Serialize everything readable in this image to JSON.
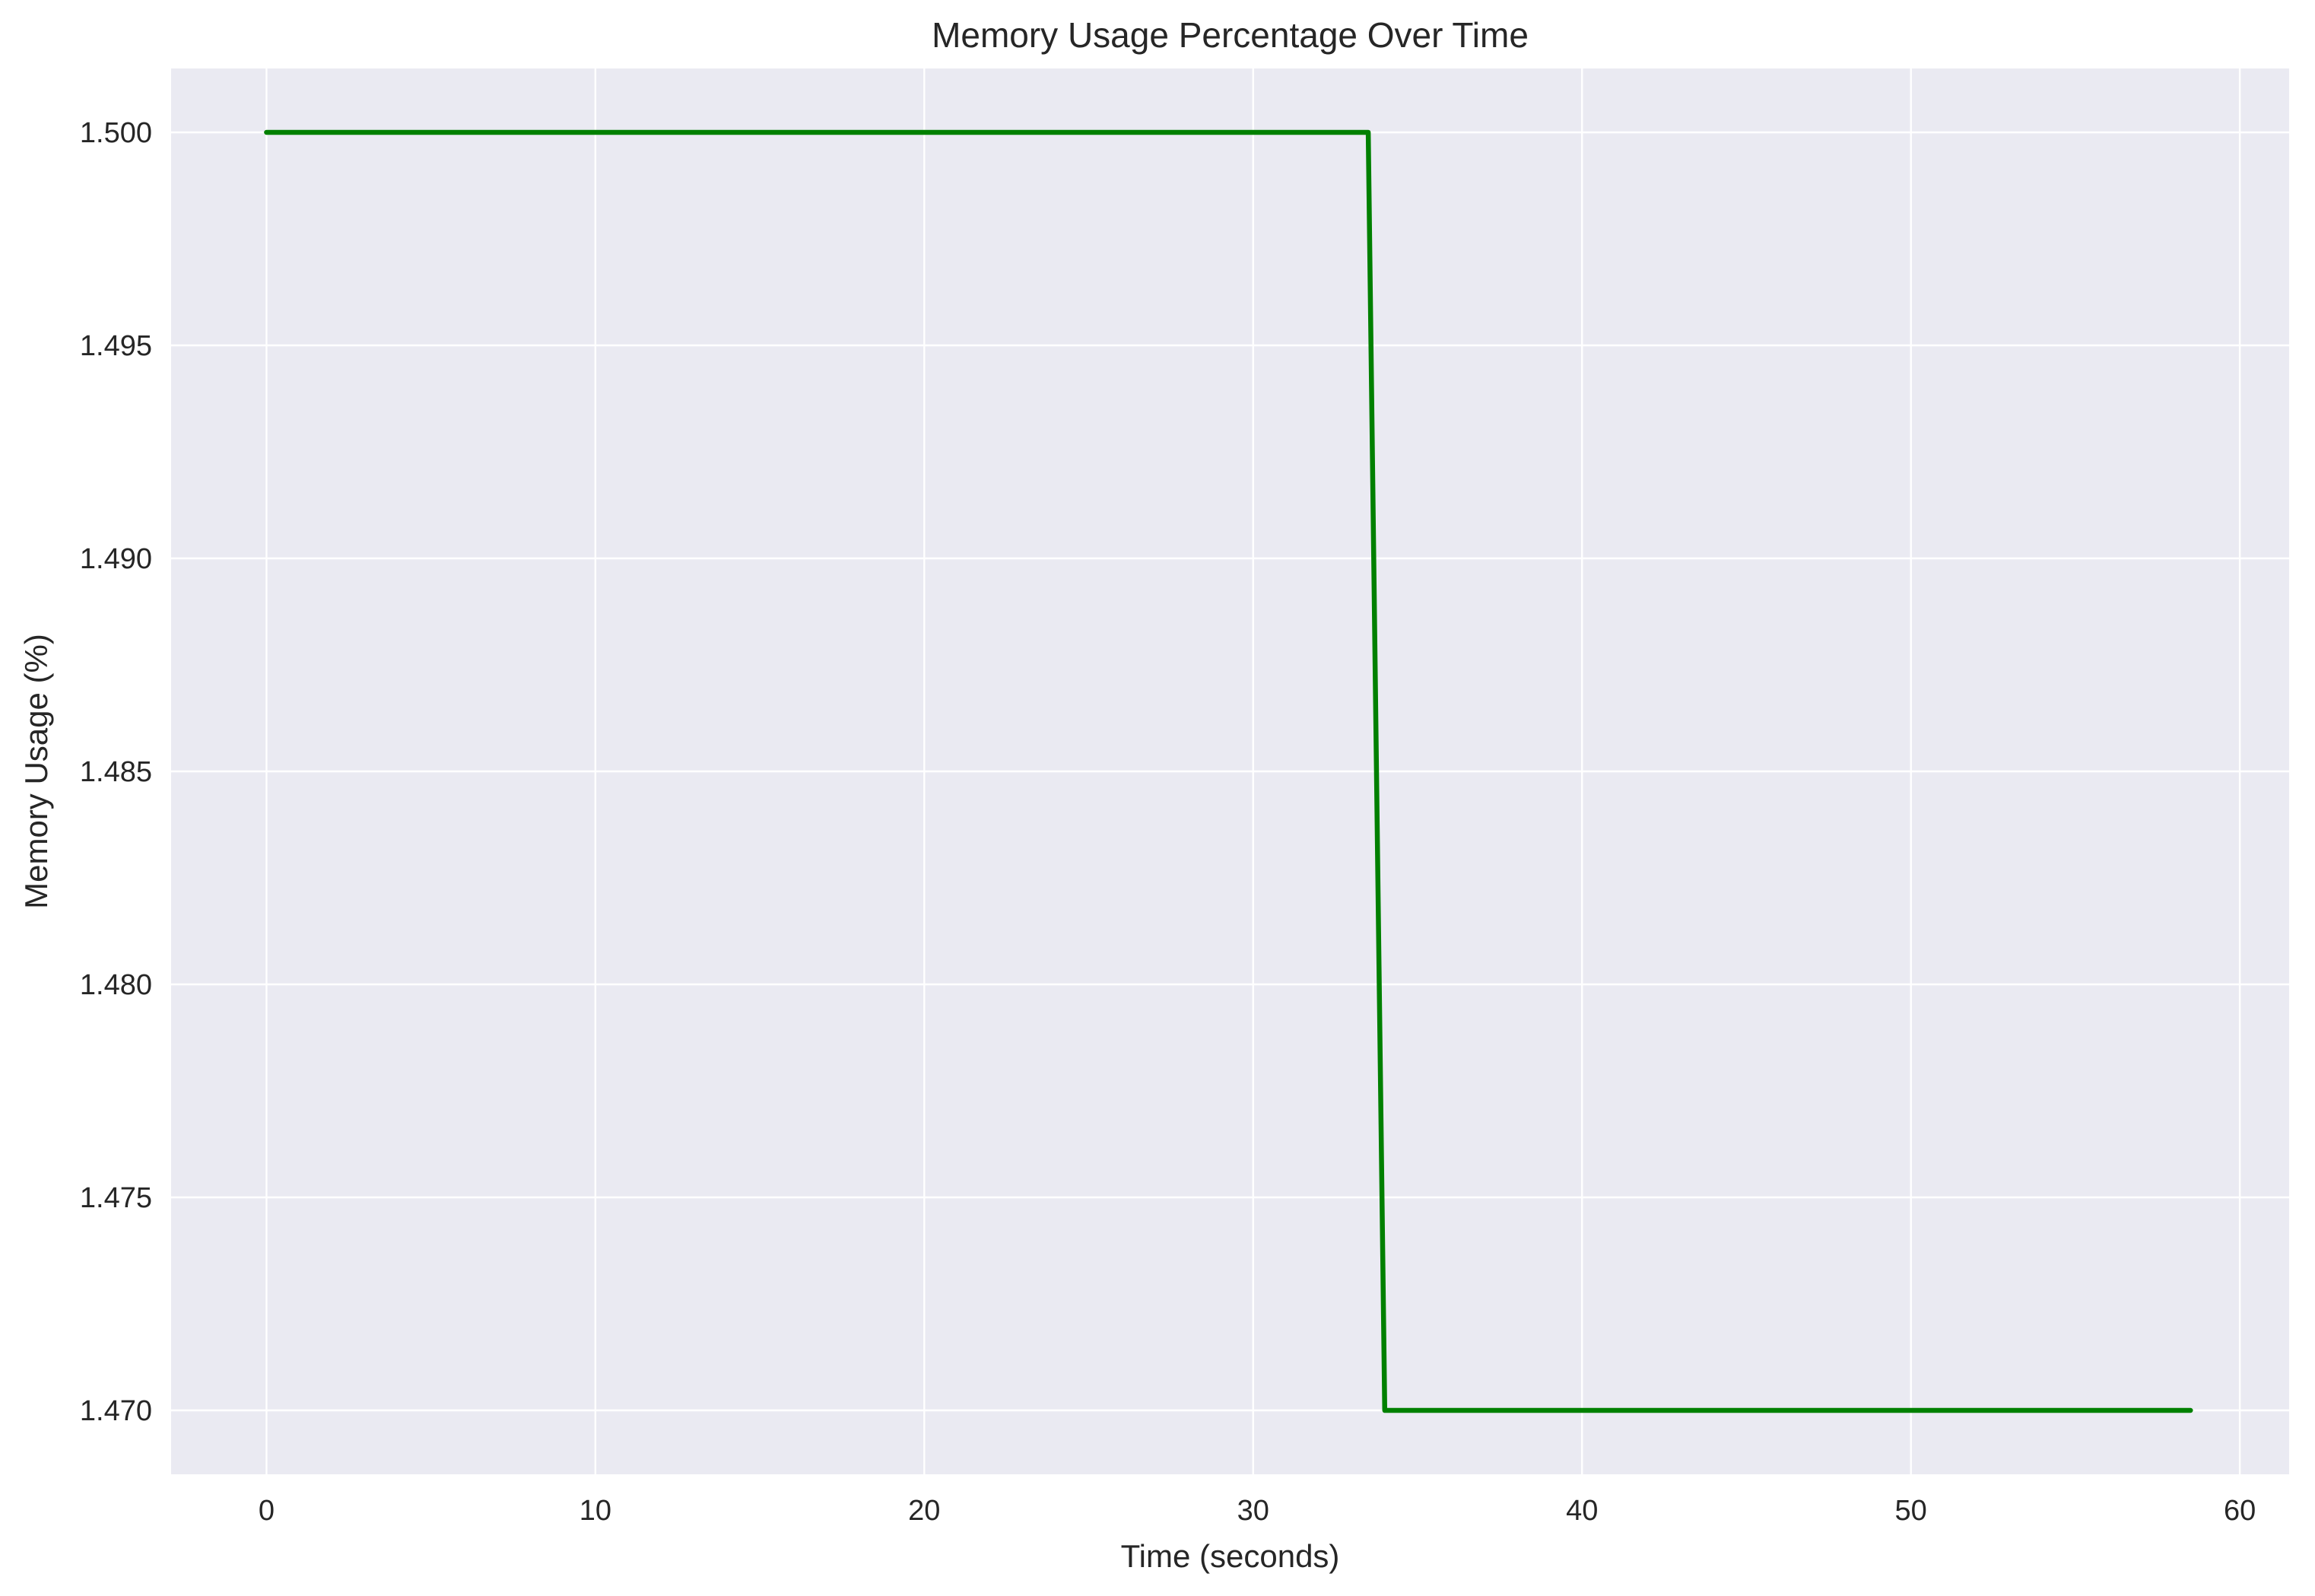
{
  "chart_data": {
    "type": "line",
    "title": "Memory Usage Percentage Over Time",
    "xlabel": "Time (seconds)",
    "ylabel": "Memory Usage (%)",
    "xlim": [
      -2.9,
      61.5
    ],
    "ylim": [
      1.4685,
      1.5015
    ],
    "xticks": [
      0,
      10,
      20,
      30,
      40,
      50,
      60
    ],
    "xtick_labels": [
      "0",
      "10",
      "20",
      "30",
      "40",
      "50",
      "60"
    ],
    "yticks": [
      1.47,
      1.475,
      1.48,
      1.485,
      1.49,
      1.495,
      1.5
    ],
    "ytick_labels": [
      "1.470",
      "1.475",
      "1.480",
      "1.485",
      "1.490",
      "1.495",
      "1.500"
    ],
    "grid": true,
    "background_color": "#eaeaf2",
    "series": [
      {
        "color": "#008000",
        "x": [
          0,
          33.5,
          34.0,
          58.5
        ],
        "y": [
          1.5,
          1.5,
          1.47,
          1.47
        ]
      }
    ]
  }
}
